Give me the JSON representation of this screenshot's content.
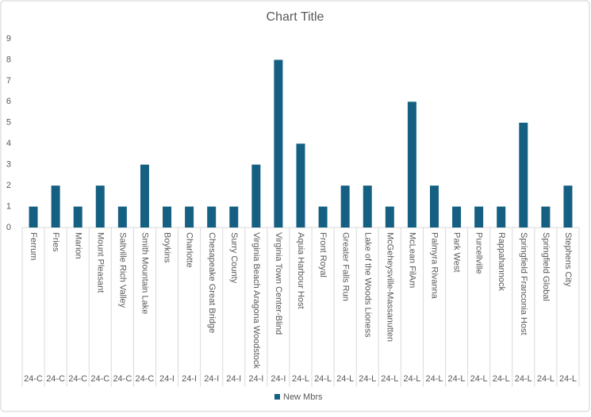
{
  "chart_data": {
    "type": "bar",
    "title": "Chart Title",
    "categories": [
      "Ferrum",
      "Fries",
      "Marion",
      "Mount Pleasant",
      "Saltville Rich Valley",
      "Smith Mountain Lake",
      "Boykins",
      "Charlotte",
      "Chesapeake Great Bridge",
      "Surry County",
      "Virginia Beach Aragona Woodstock",
      "Virginia Town Center-Blind",
      "Aquia Harbour Host",
      "Front Royal",
      "Greater Falls Run",
      "Lake of the Woods Lioness",
      "McGeheysville-Massanutten",
      "McLean FilAm",
      "Palmyra Rivanna",
      "Park West",
      "Purcellville",
      "Rappahannock",
      "Springfield Franconia Host",
      "Springfield Global",
      "Stephens City"
    ],
    "groups": [
      "24-C",
      "24-C",
      "24-C",
      "24-C",
      "24-C",
      "24-C",
      "24-I",
      "24-I",
      "24-I",
      "24-I",
      "24-I",
      "24-I",
      "24-L",
      "24-L",
      "24-L",
      "24-L",
      "24-L",
      "24-L",
      "24-L",
      "24-L",
      "24-L",
      "24-L",
      "24-L",
      "24-L",
      "24-L"
    ],
    "series": [
      {
        "name": "New Mbrs",
        "color": "#156082",
        "values": [
          1,
          2,
          1,
          2,
          1,
          3,
          1,
          1,
          1,
          1,
          3,
          8,
          4,
          1,
          2,
          2,
          1,
          6,
          2,
          1,
          1,
          1,
          5,
          1,
          2
        ]
      }
    ],
    "ylim": [
      0,
      9
    ],
    "yticks": [
      0,
      1,
      2,
      3,
      4,
      5,
      6,
      7,
      8,
      9
    ],
    "grid": false,
    "legend": "bottom"
  }
}
